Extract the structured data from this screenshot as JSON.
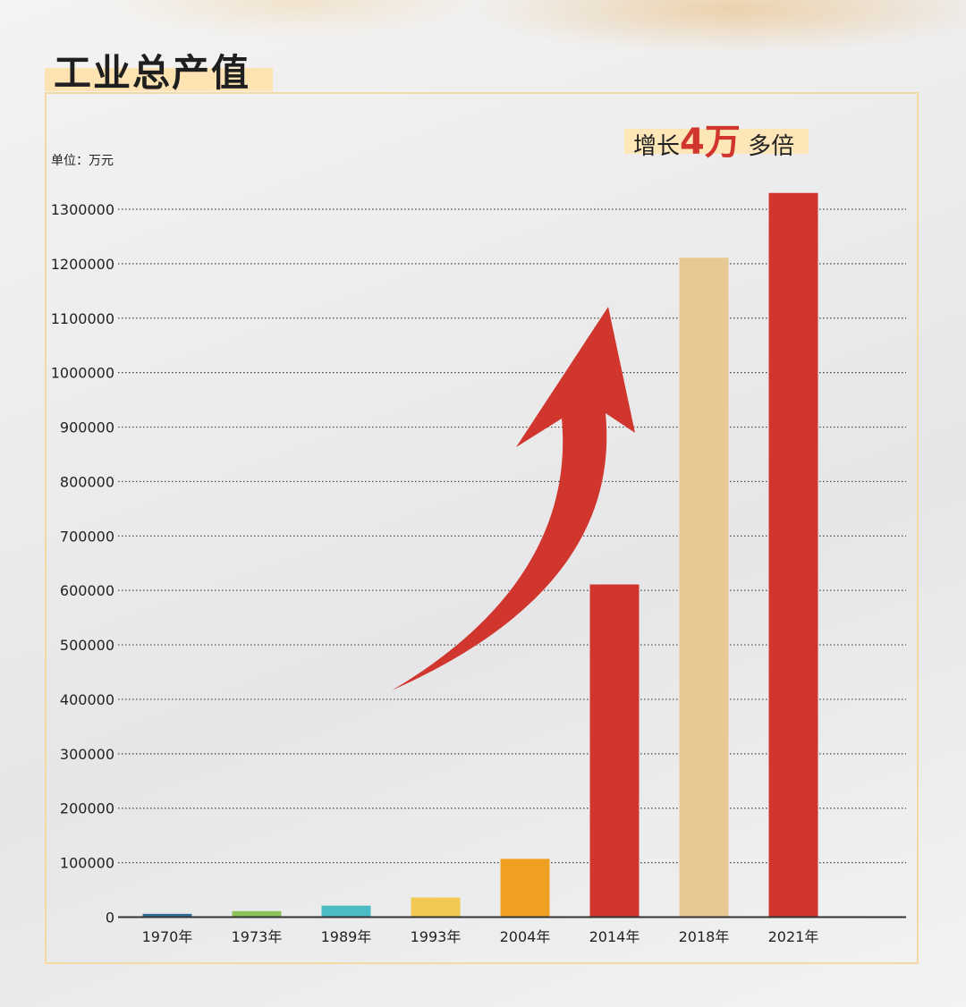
{
  "title": "工业总产值",
  "unit_label": "单位：万元",
  "callout": {
    "prefix": "增长",
    "highlight": "4万",
    "suffix": "多倍"
  },
  "colors": {
    "accent_red": "#d0362d",
    "frame": "#f5d9a3",
    "highlight": "#fde3b1"
  },
  "chart_data": {
    "type": "bar",
    "categories": [
      "1970年",
      "1973年",
      "1989年",
      "1993年",
      "2004年",
      "2014年",
      "2018年",
      "2021年"
    ],
    "values": [
      6000,
      11000,
      21000,
      36000,
      107000,
      611000,
      1211000,
      1330000
    ],
    "bar_colors": [
      "#2e6f9a",
      "#8cc45a",
      "#4bbcc4",
      "#f0ca52",
      "#f0a020",
      "#d0362d",
      "#e8c993",
      "#d0362d"
    ],
    "ylim": [
      0,
      1300000
    ],
    "yticks": [
      0,
      100000,
      200000,
      300000,
      400000,
      500000,
      600000,
      700000,
      800000,
      900000,
      1000000,
      1100000,
      1200000,
      1300000
    ],
    "grid": "horizontal dotted",
    "annotation_arrow": "red curved upward arrow"
  }
}
